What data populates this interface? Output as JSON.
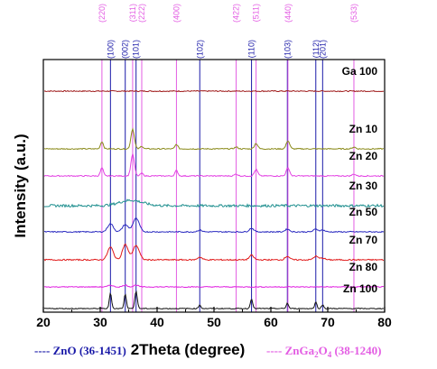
{
  "colors": {
    "zno": "#1a1aa8",
    "znga2o4": "#e35de3"
  },
  "chart_data": {
    "type": "line",
    "xlabel": "2Theta (degree)",
    "ylabel": "Intensity (a.u.)",
    "xlim": [
      20,
      80
    ],
    "x_ticks": [
      20,
      30,
      40,
      50,
      60,
      70,
      80
    ],
    "y_ticks_shown": false,
    "reference_patterns": [
      {
        "name": "ZnO",
        "legend_main": "---- ZnO (36-1451)",
        "color": "#1a1aa8",
        "peaks": [
          {
            "hkl": "(100)",
            "x": 31.8
          },
          {
            "hkl": "(002)",
            "x": 34.4
          },
          {
            "hkl": "(101)",
            "x": 36.3
          },
          {
            "hkl": "(102)",
            "x": 47.5
          },
          {
            "hkl": "(110)",
            "x": 56.6
          },
          {
            "hkl": "(103)",
            "x": 62.9
          },
          {
            "hkl": "(112)",
            "x": 67.9
          },
          {
            "hkl": "(201)",
            "x": 69.1
          }
        ]
      },
      {
        "name": "ZnGa2O4",
        "legend_main": "---- ZnGa",
        "legend_sub1": "2",
        "legend_mid": "O",
        "legend_sub2": "4",
        "legend_tail": " (38-1240)",
        "color": "#e35de3",
        "peaks": [
          {
            "hkl": "(220)",
            "x": 30.3
          },
          {
            "hkl": "(311)",
            "x": 35.7
          },
          {
            "hkl": "(222)",
            "x": 37.3
          },
          {
            "hkl": "(400)",
            "x": 43.4
          },
          {
            "hkl": "(422)",
            "x": 53.9
          },
          {
            "hkl": "(511)",
            "x": 57.4
          },
          {
            "hkl": "(440)",
            "x": 63.0
          },
          {
            "hkl": "(533)",
            "x": 74.6
          }
        ]
      }
    ],
    "series": [
      {
        "name": "Ga 100",
        "color": "#a01c1c",
        "noise": 0.6,
        "peaks": []
      },
      {
        "name": "Zn 10",
        "color": "#8a8a1a",
        "noise": 0.6,
        "peaks": [
          [
            30.3,
            8,
            0.25
          ],
          [
            35.7,
            22,
            0.3
          ],
          [
            37.3,
            3,
            0.25
          ],
          [
            43.4,
            5,
            0.25
          ],
          [
            53.9,
            2,
            0.3
          ],
          [
            57.4,
            6,
            0.3
          ],
          [
            63.0,
            9,
            0.3
          ],
          [
            74.6,
            2,
            0.3
          ]
        ]
      },
      {
        "name": "Zn 20",
        "color": "#e341e3",
        "noise": 0.6,
        "peaks": [
          [
            30.3,
            9,
            0.25
          ],
          [
            35.7,
            24,
            0.3
          ],
          [
            37.3,
            3,
            0.25
          ],
          [
            43.4,
            6,
            0.25
          ],
          [
            53.9,
            2,
            0.3
          ],
          [
            57.4,
            7,
            0.3
          ],
          [
            63.0,
            9,
            0.3
          ],
          [
            74.6,
            2,
            0.3
          ]
        ]
      },
      {
        "name": "Zn 30",
        "color": "#1f8f8f",
        "noise": 1.4,
        "peaks": [
          [
            35.4,
            6,
            2.0
          ]
        ]
      },
      {
        "name": "Zn 50",
        "color": "#2a2ac0",
        "noise": 0.6,
        "peaks": [
          [
            31.8,
            9,
            0.5
          ],
          [
            34.4,
            8,
            0.5
          ],
          [
            36.3,
            15,
            0.55
          ],
          [
            47.5,
            2,
            0.4
          ],
          [
            56.6,
            4,
            0.4
          ],
          [
            62.9,
            3,
            0.4
          ],
          [
            67.9,
            3,
            0.4
          ],
          [
            69.1,
            2,
            0.4
          ]
        ]
      },
      {
        "name": "Zn 70",
        "color": "#e01a1a",
        "noise": 0.7,
        "peaks": [
          [
            31.8,
            14,
            0.5
          ],
          [
            34.4,
            17,
            0.5
          ],
          [
            36.3,
            16,
            0.55
          ],
          [
            47.5,
            3,
            0.4
          ],
          [
            56.6,
            5,
            0.4
          ],
          [
            62.9,
            4,
            0.4
          ],
          [
            67.9,
            4,
            0.4
          ],
          [
            69.1,
            2,
            0.4
          ]
        ]
      },
      {
        "name": "Zn 80",
        "color": "#e020e0",
        "noise": 0.5,
        "peaks": [
          [
            31.8,
            2,
            0.4
          ],
          [
            34.4,
            2,
            0.4
          ],
          [
            36.3,
            2,
            0.4
          ]
        ]
      },
      {
        "name": "Zn 100",
        "color": "#111111",
        "noise": 0.5,
        "peaks": [
          [
            31.8,
            17,
            0.2
          ],
          [
            34.4,
            16,
            0.2
          ],
          [
            36.3,
            19,
            0.22
          ],
          [
            47.5,
            4,
            0.2
          ],
          [
            56.6,
            11,
            0.2
          ],
          [
            62.9,
            6,
            0.2
          ],
          [
            67.9,
            7,
            0.2
          ],
          [
            69.1,
            4,
            0.2
          ]
        ]
      }
    ]
  }
}
